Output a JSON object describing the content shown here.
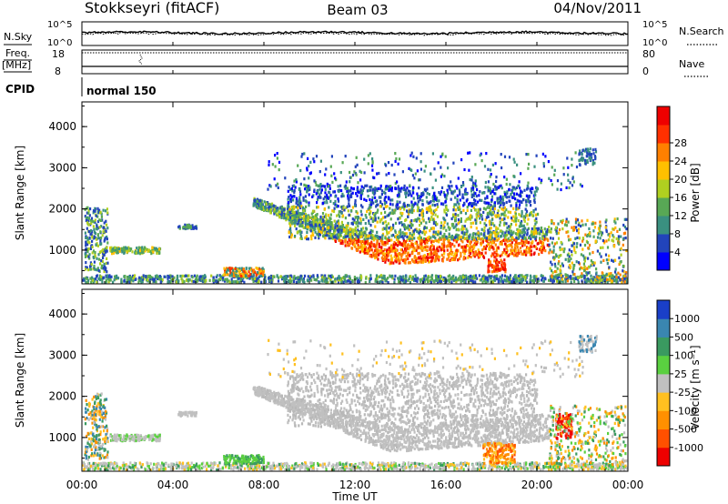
{
  "header": {
    "title": "Stokkseyri (fitACF)",
    "beam": "Beam 03",
    "date": "04/Nov/2011"
  },
  "strip1": {
    "left_label": "N.Sky",
    "right_label": "N.Search",
    "left_ticks": [
      "10^5",
      "10^0"
    ],
    "right_ticks": [
      "10^5",
      "10^0"
    ]
  },
  "strip2": {
    "left_label_1": "Freq.",
    "left_label_2": "[MHz]",
    "right_label": "Nave",
    "left_ticks": [
      "18",
      "8"
    ],
    "right_ticks": [
      "80",
      "0"
    ]
  },
  "cpid": {
    "label": "CPID",
    "value": "normal 150"
  },
  "chart_data": [
    {
      "type": "heatmap",
      "id": "power",
      "ylabel": "Slant Range [km]",
      "xlabel": "Time UT",
      "yticks": [
        1000,
        2000,
        3000,
        4000
      ],
      "ylim": [
        180,
        4600
      ],
      "xlim_hours": [
        0,
        24
      ],
      "colorbar": {
        "label": "Power [dB]",
        "ticks": [
          "4",
          "8",
          "12",
          "16",
          "20",
          "24",
          "28"
        ],
        "colors": [
          "#0000ff",
          "#2244bb",
          "#3a9080",
          "#58a855",
          "#b0d020",
          "#ffc000",
          "#ff8000",
          "#ff3000",
          "#ee0000"
        ]
      }
    },
    {
      "type": "heatmap",
      "id": "velocity",
      "ylabel": "Slant Range [km]",
      "xlabel": "Time UT",
      "yticks": [
        1000,
        2000,
        3000,
        4000
      ],
      "ylim": [
        180,
        4600
      ],
      "xlim_hours": [
        0,
        24
      ],
      "colorbar": {
        "label": "Velocity [m s⁻¹]",
        "ticks": [
          "1000",
          "500",
          "100",
          "25",
          "-25",
          "-100",
          "-500",
          "-1000"
        ],
        "colors": [
          "#1a3fc8",
          "#3a86b0",
          "#3a9a60",
          "#5ad040",
          "#c0c0c0",
          "#ffc020",
          "#ff9000",
          "#ff5000",
          "#ee0000"
        ]
      }
    }
  ],
  "x_axis": {
    "tick_labels": [
      "00:00",
      "04:00",
      "08:00",
      "12:00",
      "16:00",
      "20:00",
      "00:00"
    ],
    "label": "Time UT"
  }
}
